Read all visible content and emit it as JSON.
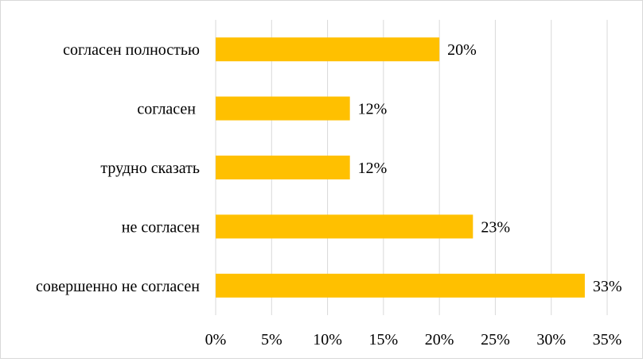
{
  "chart_data": {
    "type": "bar",
    "orientation": "horizontal",
    "categories": [
      "согласен полностью",
      "согласен ",
      "трудно сказать",
      "не согласен",
      "совершенно не согласен"
    ],
    "values": [
      20,
      12,
      12,
      23,
      33
    ],
    "data_labels": [
      "20%",
      "12%",
      "12%",
      "23%",
      "33%"
    ],
    "xlim": [
      0,
      35
    ],
    "xticks": [
      0,
      5,
      10,
      15,
      20,
      25,
      30,
      35
    ],
    "xtick_labels": [
      "0%",
      "5%",
      "10%",
      "15%",
      "20%",
      "25%",
      "30%",
      "35%"
    ],
    "bar_color": "#FFC000",
    "grid": true,
    "title": "",
    "xlabel": "",
    "ylabel": ""
  }
}
